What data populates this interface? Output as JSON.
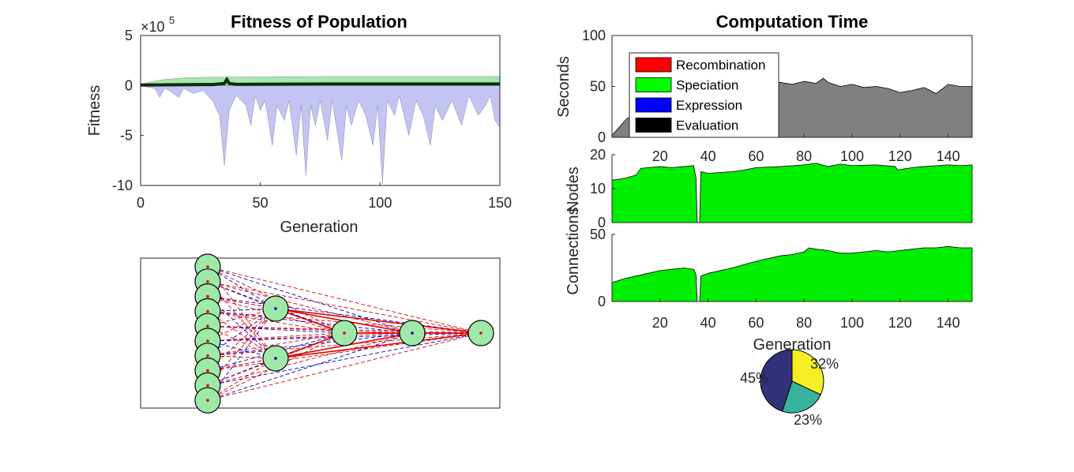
{
  "colors": {
    "upper_band": "#a8e6b0",
    "lower_band": "#c4c4f2",
    "mean_line": "#0b2e0b",
    "seconds_area": "#808080",
    "count_area": "#00ee00",
    "node_fill": "#9ee8a8",
    "weight_positive": "#dd0000",
    "weight_negative": "#0000cc",
    "pie_a": "#f5ee22",
    "pie_b": "#36b39c",
    "pie_c": "#33317a"
  },
  "chart_data": [
    {
      "id": "fitness",
      "type": "area",
      "title": "Fitness of Population",
      "xlabel": "Generation",
      "ylabel": "Fitness",
      "exponent_label": "×10",
      "exponent_power": "5",
      "xlim": [
        0,
        150
      ],
      "ylim": [
        -10,
        5
      ],
      "xticks": [
        0,
        50,
        100,
        150
      ],
      "yticks": [
        5,
        0,
        -5,
        -10
      ],
      "max_series": [
        [
          0,
          0.1
        ],
        [
          5,
          0.4
        ],
        [
          10,
          0.6
        ],
        [
          20,
          0.8
        ],
        [
          40,
          0.85
        ],
        [
          80,
          0.9
        ],
        [
          120,
          0.9
        ],
        [
          150,
          0.9
        ]
      ],
      "mean_series": [
        [
          0,
          0.05
        ],
        [
          30,
          0.1
        ],
        [
          35,
          0.2
        ],
        [
          36,
          0.6
        ],
        [
          37,
          0.2
        ],
        [
          40,
          0.12
        ],
        [
          80,
          0.15
        ],
        [
          120,
          0.15
        ],
        [
          150,
          0.15
        ]
      ],
      "min_series": [
        [
          0,
          0
        ],
        [
          6,
          -0.3
        ],
        [
          8,
          -1.2
        ],
        [
          10,
          -0.3
        ],
        [
          12,
          -0.5
        ],
        [
          16,
          -1.2
        ],
        [
          18,
          -0.3
        ],
        [
          22,
          -0.8
        ],
        [
          26,
          -0.5
        ],
        [
          30,
          -1.5
        ],
        [
          33,
          -3
        ],
        [
          35,
          -8
        ],
        [
          37,
          -2.5
        ],
        [
          40,
          -1
        ],
        [
          44,
          -2
        ],
        [
          46,
          -4
        ],
        [
          48,
          -1
        ],
        [
          50,
          -2.5
        ],
        [
          52,
          -1.5
        ],
        [
          55,
          -6
        ],
        [
          57,
          -2
        ],
        [
          60,
          -3.5
        ],
        [
          62,
          -1.5
        ],
        [
          65,
          -7
        ],
        [
          67,
          -2
        ],
        [
          69,
          -9
        ],
        [
          71,
          -2
        ],
        [
          73,
          -4
        ],
        [
          75,
          -1.5
        ],
        [
          78,
          -5.5
        ],
        [
          80,
          -1.5
        ],
        [
          84,
          -7.5
        ],
        [
          86,
          -2
        ],
        [
          88,
          -4
        ],
        [
          91,
          -1.5
        ],
        [
          94,
          -3
        ],
        [
          97,
          -6
        ],
        [
          99,
          -2
        ],
        [
          101,
          -9.8
        ],
        [
          103,
          -1.5
        ],
        [
          106,
          -3
        ],
        [
          108,
          -1
        ],
        [
          112,
          -5
        ],
        [
          115,
          -1.5
        ],
        [
          118,
          -3
        ],
        [
          121,
          -6
        ],
        [
          123,
          -2
        ],
        [
          126,
          -3.5
        ],
        [
          130,
          -1.5
        ],
        [
          134,
          -4
        ],
        [
          137,
          -1
        ],
        [
          141,
          -3
        ],
        [
          144,
          -2
        ],
        [
          146,
          -1
        ],
        [
          148,
          -3.5
        ],
        [
          150,
          -4.2
        ]
      ]
    },
    {
      "id": "time",
      "type": "area",
      "title": "Computation Time",
      "ylabel": "Seconds",
      "xlim": [
        0,
        150
      ],
      "ylim": [
        0,
        100
      ],
      "yticks": [
        100,
        50,
        0
      ],
      "xticks": [
        20,
        40,
        60,
        80,
        100,
        120,
        140
      ],
      "legend": [
        "Recombination",
        "Speciation",
        "Expression",
        "Evaluation"
      ],
      "legend_colors": [
        "#ff0000",
        "#00ff00",
        "#0000ff",
        "#000000"
      ],
      "legend_position": "top-left",
      "series": [
        [
          0,
          2
        ],
        [
          3,
          10
        ],
        [
          6,
          18
        ],
        [
          9,
          22
        ],
        [
          12,
          26
        ],
        [
          16,
          30
        ],
        [
          20,
          34
        ],
        [
          25,
          40
        ],
        [
          30,
          42
        ],
        [
          35,
          44
        ],
        [
          40,
          45
        ],
        [
          45,
          47
        ],
        [
          50,
          46
        ],
        [
          55,
          50
        ],
        [
          60,
          52
        ],
        [
          65,
          50
        ],
        [
          70,
          54
        ],
        [
          75,
          52
        ],
        [
          80,
          55
        ],
        [
          85,
          53
        ],
        [
          88,
          58
        ],
        [
          90,
          54
        ],
        [
          95,
          50
        ],
        [
          100,
          52
        ],
        [
          105,
          49
        ],
        [
          110,
          50
        ],
        [
          115,
          48
        ],
        [
          120,
          44
        ],
        [
          125,
          46
        ],
        [
          130,
          49
        ],
        [
          135,
          43
        ],
        [
          140,
          52
        ],
        [
          145,
          50
        ],
        [
          150,
          50
        ]
      ]
    },
    {
      "id": "nodes",
      "type": "area",
      "ylabel": "Nodes",
      "xlim": [
        0,
        150
      ],
      "ylim": [
        0,
        20
      ],
      "yticks": [
        20,
        10,
        0
      ],
      "series": [
        [
          0,
          12.5
        ],
        [
          5,
          13
        ],
        [
          10,
          14
        ],
        [
          12,
          16
        ],
        [
          20,
          16.5
        ],
        [
          25,
          16.2
        ],
        [
          30,
          16.5
        ],
        [
          34,
          16.8
        ],
        [
          35,
          13
        ],
        [
          35.5,
          0
        ],
        [
          36.5,
          0
        ],
        [
          37,
          15
        ],
        [
          40,
          14.5
        ],
        [
          50,
          15
        ],
        [
          55,
          15.5
        ],
        [
          60,
          16.2
        ],
        [
          70,
          16.5
        ],
        [
          80,
          17
        ],
        [
          85,
          17.5
        ],
        [
          90,
          16.5
        ],
        [
          95,
          17.2
        ],
        [
          100,
          16.8
        ],
        [
          110,
          17
        ],
        [
          118,
          16.5
        ],
        [
          119,
          15.5
        ],
        [
          125,
          16.2
        ],
        [
          130,
          16.5
        ],
        [
          140,
          17
        ],
        [
          145,
          16.8
        ],
        [
          150,
          17
        ]
      ]
    },
    {
      "id": "connections",
      "type": "area",
      "ylabel": "Connections",
      "xlabel": "Generation",
      "xlim": [
        0,
        150
      ],
      "ylim": [
        0,
        50
      ],
      "yticks": [
        50,
        0
      ],
      "xticks": [
        20,
        40,
        60,
        80,
        100,
        120,
        140
      ],
      "series": [
        [
          0,
          14
        ],
        [
          5,
          17
        ],
        [
          10,
          19
        ],
        [
          15,
          21
        ],
        [
          20,
          23
        ],
        [
          25,
          24
        ],
        [
          30,
          25
        ],
        [
          34,
          24
        ],
        [
          35,
          20
        ],
        [
          35.5,
          0
        ],
        [
          36.5,
          0
        ],
        [
          37,
          19
        ],
        [
          40,
          21
        ],
        [
          50,
          25
        ],
        [
          60,
          30
        ],
        [
          70,
          34
        ],
        [
          75,
          35
        ],
        [
          80,
          37
        ],
        [
          82,
          40
        ],
        [
          85,
          39
        ],
        [
          90,
          38
        ],
        [
          95,
          36
        ],
        [
          100,
          36
        ],
        [
          105,
          37
        ],
        [
          110,
          38
        ],
        [
          115,
          37
        ],
        [
          120,
          38
        ],
        [
          125,
          39
        ],
        [
          130,
          40
        ],
        [
          135,
          40
        ],
        [
          140,
          41
        ],
        [
          145,
          40
        ],
        [
          150,
          40
        ]
      ]
    },
    {
      "id": "share",
      "type": "pie",
      "values": [
        32,
        23,
        45
      ],
      "labels": [
        "32%",
        "23%",
        "45%"
      ]
    }
  ],
  "network": {
    "layers": [
      10,
      2,
      1,
      1,
      1
    ]
  }
}
